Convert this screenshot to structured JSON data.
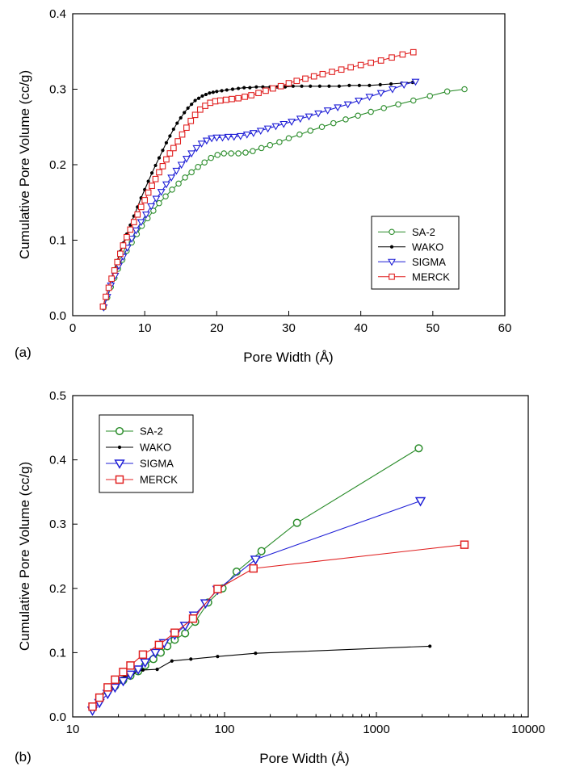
{
  "chart_data": [
    {
      "id": "a",
      "type": "line",
      "panel_label": "(a)",
      "xlabel": "Pore Width (Å)",
      "ylabel": "Cumulative Pore Volume (cc/g)",
      "xlim": [
        0,
        60
      ],
      "ylim": [
        0,
        0.4
      ],
      "xscale": "linear",
      "xticks": [
        0,
        10,
        20,
        30,
        40,
        50,
        60
      ],
      "xtick_labels": [
        "0",
        "10",
        "20",
        "30",
        "40",
        "50",
        "60"
      ],
      "yticks": [
        0,
        0.1,
        0.2,
        0.3,
        0.4
      ],
      "ytick_labels": [
        "0.0",
        "0.1",
        "0.2",
        "0.3",
        "0.4"
      ],
      "legend_position": "lower-right",
      "grid": false,
      "series": [
        {
          "name": "SA-2",
          "color": "#2a8c2a",
          "marker": "circle",
          "x": [
            4.3,
            4.8,
            5.3,
            5.8,
            6.3,
            6.9,
            7.5,
            8.2,
            8.9,
            9.6,
            10.4,
            11.2,
            12.0,
            12.9,
            13.8,
            14.7,
            15.6,
            16.5,
            17.4,
            18.3,
            19.2,
            20.1,
            21.0,
            22.0,
            23.0,
            24.0,
            25.0,
            26.2,
            27.4,
            28.7,
            30.0,
            31.5,
            33.0,
            34.6,
            36.2,
            37.9,
            39.6,
            41.4,
            43.2,
            45.2,
            47.3,
            49.6,
            52.0,
            54.4
          ],
          "y": [
            0.011,
            0.024,
            0.038,
            0.05,
            0.062,
            0.074,
            0.086,
            0.097,
            0.108,
            0.119,
            0.129,
            0.139,
            0.149,
            0.158,
            0.167,
            0.175,
            0.183,
            0.19,
            0.197,
            0.203,
            0.209,
            0.213,
            0.215,
            0.215,
            0.215,
            0.216,
            0.218,
            0.222,
            0.226,
            0.23,
            0.235,
            0.24,
            0.245,
            0.25,
            0.255,
            0.26,
            0.265,
            0.27,
            0.275,
            0.28,
            0.285,
            0.291,
            0.297,
            0.3
          ]
        },
        {
          "name": "WAKO",
          "color": "#000000",
          "marker": "dot",
          "x": [
            4.2,
            4.6,
            5.0,
            5.4,
            5.8,
            6.2,
            6.6,
            7.0,
            7.5,
            8.0,
            8.5,
            9.0,
            9.5,
            10.0,
            10.5,
            11.0,
            11.5,
            12.0,
            12.5,
            13.0,
            13.5,
            14.0,
            14.5,
            15.0,
            15.5,
            16.0,
            16.5,
            17.0,
            17.5,
            18.0,
            18.5,
            19.0,
            19.5,
            20.0,
            20.7,
            21.4,
            22.2,
            23.0,
            23.8,
            24.6,
            25.5,
            26.4,
            27.4,
            28.4,
            29.5,
            30.6,
            31.8,
            33.0,
            34.3,
            35.6,
            37.0,
            38.4,
            39.8,
            41.2,
            42.7,
            44.2,
            45.7,
            47.2
          ],
          "y": [
            0.012,
            0.025,
            0.038,
            0.05,
            0.062,
            0.073,
            0.085,
            0.096,
            0.108,
            0.12,
            0.132,
            0.144,
            0.156,
            0.167,
            0.178,
            0.189,
            0.199,
            0.209,
            0.219,
            0.229,
            0.238,
            0.247,
            0.255,
            0.262,
            0.269,
            0.275,
            0.28,
            0.285,
            0.288,
            0.291,
            0.293,
            0.295,
            0.296,
            0.297,
            0.298,
            0.299,
            0.3,
            0.301,
            0.302,
            0.302,
            0.303,
            0.303,
            0.303,
            0.303,
            0.303,
            0.304,
            0.304,
            0.304,
            0.304,
            0.304,
            0.304,
            0.305,
            0.305,
            0.305,
            0.306,
            0.307,
            0.308,
            0.309
          ]
        },
        {
          "name": "SIGMA",
          "color": "#1f1fd6",
          "marker": "triangle-down",
          "x": [
            4.3,
            4.8,
            5.3,
            5.9,
            6.4,
            7.0,
            7.6,
            8.2,
            8.8,
            9.5,
            10.2,
            10.9,
            11.6,
            12.3,
            13.0,
            13.7,
            14.4,
            15.1,
            15.8,
            16.5,
            17.2,
            17.9,
            18.6,
            19.3,
            20.0,
            20.8,
            21.6,
            22.4,
            23.3,
            24.2,
            25.1,
            26.1,
            27.1,
            28.2,
            29.3,
            30.4,
            31.6,
            32.8,
            34.1,
            35.4,
            36.8,
            38.2,
            39.7,
            41.2,
            42.8,
            44.4,
            46.0,
            47.6
          ],
          "y": [
            0.011,
            0.025,
            0.04,
            0.053,
            0.066,
            0.078,
            0.09,
            0.102,
            0.113,
            0.124,
            0.134,
            0.145,
            0.155,
            0.164,
            0.174,
            0.183,
            0.192,
            0.2,
            0.208,
            0.215,
            0.222,
            0.228,
            0.232,
            0.235,
            0.236,
            0.236,
            0.237,
            0.237,
            0.238,
            0.24,
            0.242,
            0.245,
            0.248,
            0.251,
            0.254,
            0.257,
            0.261,
            0.264,
            0.268,
            0.272,
            0.276,
            0.28,
            0.285,
            0.29,
            0.295,
            0.3,
            0.306,
            0.31
          ]
        },
        {
          "name": "MERCK",
          "color": "#e02020",
          "marker": "square",
          "x": [
            4.2,
            4.6,
            5.0,
            5.4,
            5.8,
            6.2,
            6.6,
            7.0,
            7.5,
            8.0,
            8.5,
            9.0,
            9.5,
            10.0,
            10.5,
            11.0,
            11.5,
            12.0,
            12.5,
            13.0,
            13.5,
            14.0,
            14.6,
            15.2,
            15.8,
            16.4,
            17.0,
            17.7,
            18.4,
            19.1,
            19.8,
            20.5,
            21.3,
            22.1,
            23.0,
            23.9,
            24.8,
            25.8,
            26.8,
            27.8,
            28.9,
            30.0,
            31.1,
            32.3,
            33.5,
            34.7,
            36.0,
            37.3,
            38.6,
            40.0,
            41.4,
            42.8,
            44.3,
            45.8,
            47.3
          ],
          "y": [
            0.012,
            0.025,
            0.037,
            0.049,
            0.06,
            0.071,
            0.082,
            0.093,
            0.104,
            0.114,
            0.124,
            0.134,
            0.144,
            0.153,
            0.163,
            0.172,
            0.181,
            0.19,
            0.198,
            0.207,
            0.215,
            0.222,
            0.231,
            0.24,
            0.249,
            0.258,
            0.266,
            0.273,
            0.278,
            0.282,
            0.284,
            0.285,
            0.286,
            0.287,
            0.288,
            0.29,
            0.292,
            0.295,
            0.298,
            0.301,
            0.304,
            0.308,
            0.311,
            0.314,
            0.317,
            0.32,
            0.323,
            0.326,
            0.329,
            0.332,
            0.335,
            0.338,
            0.342,
            0.346,
            0.349
          ]
        }
      ]
    },
    {
      "id": "b",
      "type": "line",
      "panel_label": "(b)",
      "xlabel": "Pore Width (Å)",
      "ylabel": "Cumulative Pore Volume (cc/g)",
      "xlim": [
        10,
        10000
      ],
      "ylim": [
        0,
        0.5
      ],
      "xscale": "log",
      "xticks": [
        10,
        100,
        1000,
        10000
      ],
      "xtick_labels": [
        "10",
        "100",
        "1000",
        "10000"
      ],
      "yticks": [
        0,
        0.1,
        0.2,
        0.3,
        0.4,
        0.5
      ],
      "ytick_labels": [
        "0.0",
        "0.1",
        "0.2",
        "0.3",
        "0.4",
        "0.5"
      ],
      "legend_position": "upper-left",
      "grid": false,
      "series": [
        {
          "name": "SA-2",
          "color": "#2a8c2a",
          "marker": "circle",
          "x": [
            13.5,
            15,
            17,
            19,
            21.5,
            24,
            27,
            30,
            34,
            38,
            42,
            47,
            55,
            64,
            78,
            97,
            120,
            175,
            300,
            1900
          ],
          "y": [
            0.015,
            0.03,
            0.04,
            0.048,
            0.057,
            0.064,
            0.071,
            0.08,
            0.09,
            0.1,
            0.11,
            0.12,
            0.13,
            0.148,
            0.178,
            0.2,
            0.226,
            0.258,
            0.302,
            0.418
          ]
        },
        {
          "name": "WAKO",
          "color": "#000000",
          "marker": "dot",
          "x": [
            13.5,
            15,
            17,
            19.5,
            22,
            25,
            29,
            36,
            45,
            60,
            90,
            160,
            2250
          ],
          "y": [
            0.015,
            0.032,
            0.044,
            0.054,
            0.062,
            0.068,
            0.073,
            0.074,
            0.087,
            0.09,
            0.094,
            0.099,
            0.11
          ]
        },
        {
          "name": "SIGMA",
          "color": "#1f1fd6",
          "marker": "triangle-down",
          "x": [
            13.5,
            15,
            17,
            19,
            21.5,
            24,
            27,
            30,
            35,
            40,
            47,
            55,
            63,
            75,
            90,
            160,
            1950
          ],
          "y": [
            0.01,
            0.022,
            0.036,
            0.046,
            0.056,
            0.066,
            0.074,
            0.085,
            0.1,
            0.115,
            0.128,
            0.142,
            0.158,
            0.177,
            0.198,
            0.245,
            0.336
          ]
        },
        {
          "name": "MERCK",
          "color": "#e02020",
          "marker": "square",
          "x": [
            13.5,
            15,
            17,
            19,
            21.5,
            24,
            29,
            37,
            47,
            62,
            90,
            155,
            3800
          ],
          "y": [
            0.016,
            0.03,
            0.046,
            0.058,
            0.07,
            0.08,
            0.097,
            0.112,
            0.131,
            0.153,
            0.199,
            0.231,
            0.268
          ]
        }
      ]
    }
  ]
}
